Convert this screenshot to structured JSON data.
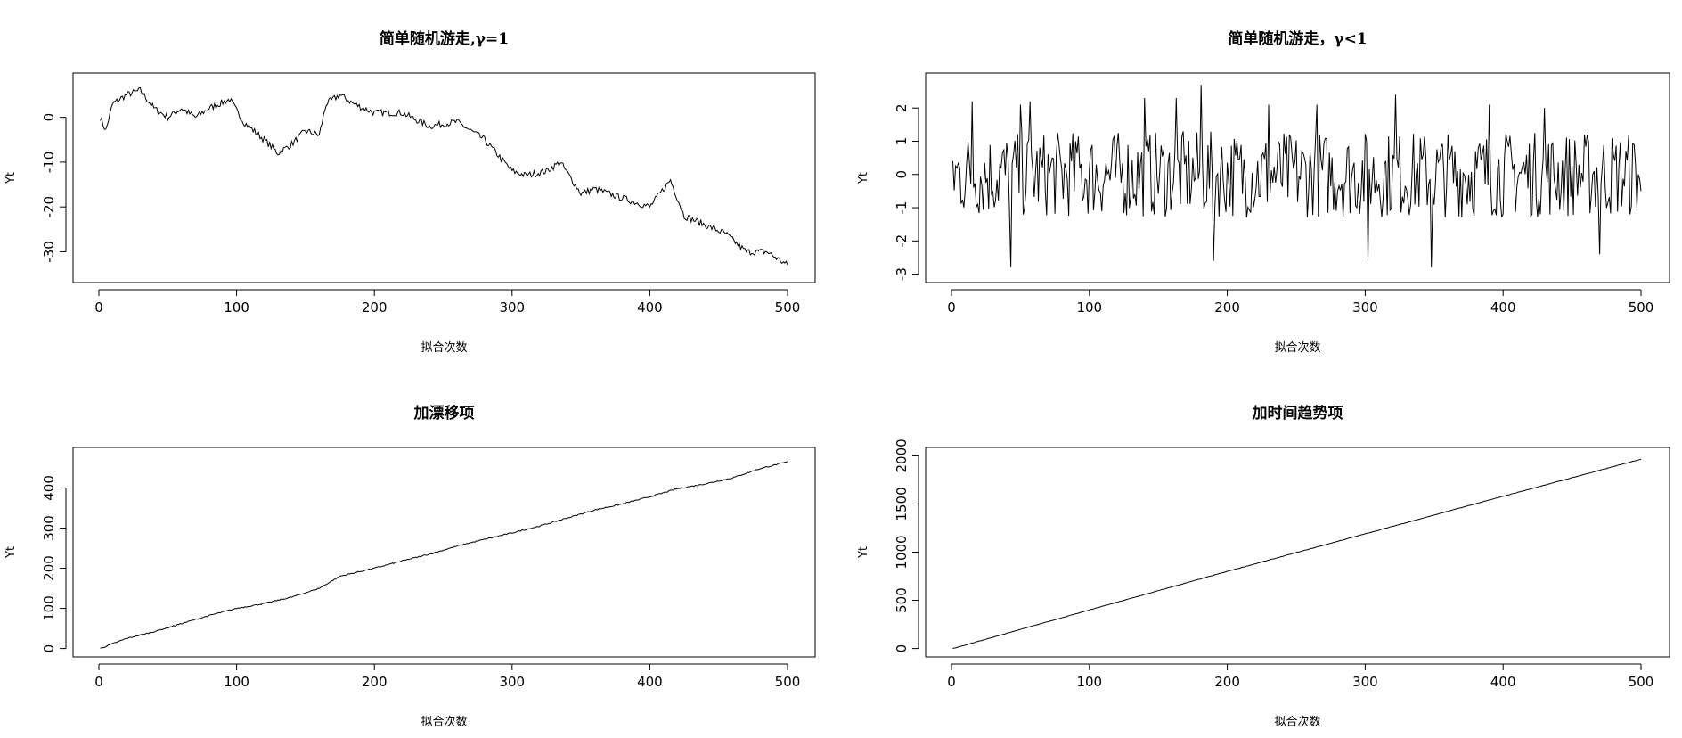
{
  "chart_data": [
    {
      "type": "line",
      "title": "简单随机游走,γ=1",
      "xlabel": "拟合次数",
      "ylabel": "Yt",
      "xlim": [
        0,
        500
      ],
      "ylim": [
        -35,
        8
      ],
      "xticks": [
        0,
        100,
        200,
        300,
        400,
        500
      ],
      "yticks": [
        0,
        -10,
        -20,
        -30
      ],
      "series": [
        {
          "x": [
            1,
            5,
            10,
            20,
            30,
            40,
            50,
            60,
            70,
            80,
            95,
            105,
            120,
            130,
            140,
            150,
            160,
            165,
            175,
            185,
            200,
            220,
            240,
            260,
            280,
            300,
            310,
            325,
            335,
            350,
            360,
            380,
            400,
            415,
            425,
            440,
            455,
            470,
            485,
            495,
            500
          ],
          "values": [
            0,
            -3,
            3,
            5,
            6,
            2,
            0,
            2,
            0,
            2,
            4,
            -1,
            -5,
            -8,
            -6,
            -3,
            -4,
            3,
            5,
            3,
            1,
            1,
            -2,
            -1,
            -5,
            -12,
            -13,
            -12,
            -10,
            -17,
            -16,
            -18,
            -20,
            -14,
            -22,
            -24,
            -26,
            -30,
            -30,
            -32,
            -33
          ]
        }
      ]
    },
    {
      "type": "line",
      "title": "简单随机游走，γ<1",
      "xlabel": "拟合次数",
      "ylabel": "Yt",
      "xlim": [
        0,
        500
      ],
      "ylim": [
        -3,
        2.8
      ],
      "xticks": [
        0,
        100,
        200,
        300,
        400,
        500
      ],
      "yticks": [
        2,
        1,
        0,
        -1,
        -2,
        -3
      ],
      "series": [
        {
          "x": [
            1,
            15,
            43,
            50,
            57,
            90,
            140,
            163,
            181,
            190,
            230,
            265,
            302,
            322,
            348,
            390,
            430,
            470,
            500
          ],
          "values": [
            0.4,
            2.2,
            -2.8,
            2.1,
            2.2,
            1.0,
            2.3,
            2.3,
            2.7,
            -2.6,
            2.1,
            2.1,
            -2.6,
            2.4,
            -2.8,
            2.1,
            2.0,
            -2.4,
            -0.5
          ]
        }
      ]
    },
    {
      "type": "line",
      "title": "加漂移项",
      "xlabel": "拟合次数",
      "ylabel": "Yt",
      "xlim": [
        0,
        500
      ],
      "ylim": [
        0,
        480
      ],
      "xticks": [
        0,
        100,
        200,
        300,
        400,
        500
      ],
      "yticks": [
        0,
        100,
        200,
        300,
        400
      ],
      "series": [
        {
          "x": [
            1,
            20,
            40,
            60,
            80,
            100,
            120,
            140,
            160,
            175,
            200,
            220,
            240,
            260,
            280,
            300,
            320,
            340,
            360,
            380,
            400,
            420,
            440,
            460,
            480,
            500
          ],
          "values": [
            0,
            25,
            42,
            62,
            82,
            100,
            112,
            128,
            150,
            180,
            200,
            218,
            235,
            255,
            272,
            288,
            305,
            325,
            345,
            360,
            378,
            398,
            410,
            425,
            448,
            465
          ]
        }
      ]
    },
    {
      "type": "line",
      "title": "加时间趋势项",
      "xlabel": "拟合次数",
      "ylabel": "Yt",
      "xlim": [
        0,
        500
      ],
      "ylim": [
        0,
        2000
      ],
      "xticks": [
        0,
        100,
        200,
        300,
        400,
        500
      ],
      "yticks": [
        0,
        500,
        1000,
        1500,
        2000
      ],
      "series": [
        {
          "x": [
            1,
            100,
            200,
            300,
            400,
            500
          ],
          "values": [
            0,
            400,
            800,
            1190,
            1580,
            1965
          ]
        }
      ]
    }
  ]
}
